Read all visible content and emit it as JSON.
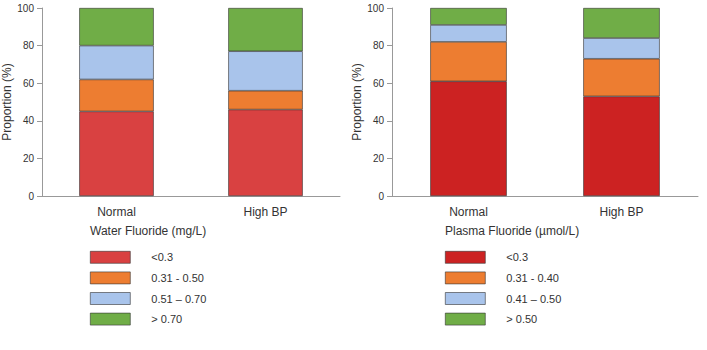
{
  "chart_data": [
    {
      "type": "bar",
      "stacked": true,
      "grid": false,
      "legend": "bottom",
      "legend_title": "Water Fluoride (mg/L)",
      "ylabel": "Proportion (%)",
      "categories": [
        "Normal",
        "High BP"
      ],
      "ylim": [
        0,
        100
      ],
      "yticks": [
        0,
        20,
        40,
        60,
        80,
        100
      ],
      "series": [
        {
          "name": "<0.3",
          "color": "#d94141",
          "values": [
            45,
            46
          ]
        },
        {
          "name": "0.31 - 0.50",
          "color": "#ed7d31",
          "values": [
            17,
            10
          ]
        },
        {
          "name": "0.51 – 0.70",
          "color": "#a9c4eb",
          "values": [
            18,
            21
          ]
        },
        {
          "name": "> 0.70",
          "color": "#70ad47",
          "values": [
            20,
            23
          ]
        }
      ]
    },
    {
      "type": "bar",
      "stacked": true,
      "grid": false,
      "legend": "bottom",
      "legend_title": "Plasma Fluoride (µmol/L)",
      "ylabel": "Proportion (%)",
      "categories": [
        "Normal",
        "High BP"
      ],
      "ylim": [
        0,
        100
      ],
      "yticks": [
        0,
        20,
        40,
        60,
        80,
        100
      ],
      "series": [
        {
          "name": "<0.3",
          "color": "#cc2222",
          "values": [
            61,
            53
          ]
        },
        {
          "name": "0.31 - 0.40",
          "color": "#ed7d31",
          "values": [
            21,
            20
          ]
        },
        {
          "name": "0.41 – 0.50",
          "color": "#a9c4eb",
          "values": [
            9,
            11
          ]
        },
        {
          "name": "> 0.50",
          "color": "#70ad47",
          "values": [
            9,
            16
          ]
        }
      ]
    }
  ]
}
